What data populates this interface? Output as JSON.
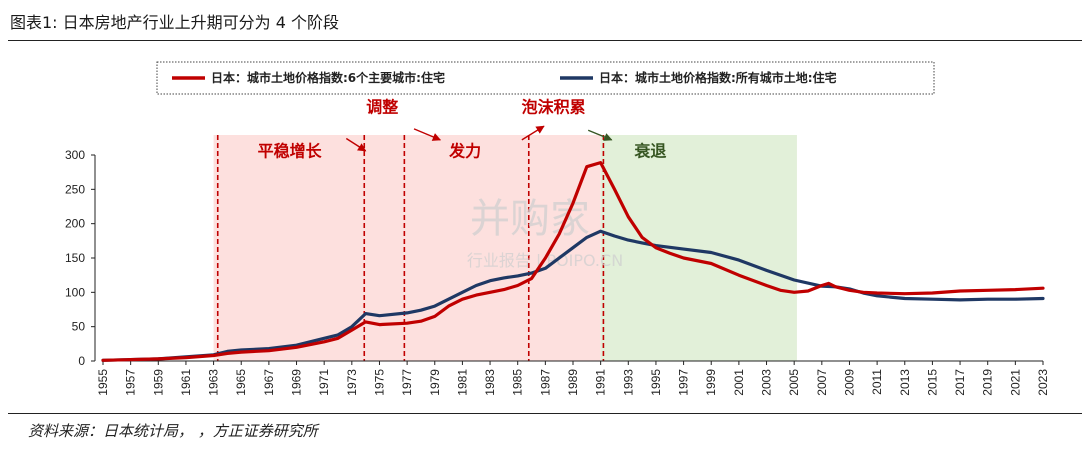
{
  "figure": {
    "title": "图表1: 日本房地产行业上升期可分为 4 个阶段",
    "source": "资料来源：日本统计局，        ，方正证券研究所"
  },
  "watermark": {
    "brand": "并购家",
    "site": "行业报告 | POIPO.CN"
  },
  "colors": {
    "red": "#C00000",
    "blue": "#1F3864",
    "pink_band": "#FDE0DE",
    "green_band": "#E2F0D9",
    "green_text": "#375623",
    "arrow": "#C00000"
  },
  "chart_data": {
    "type": "line",
    "title": "",
    "xlabel": "",
    "ylabel": "",
    "xlim": [
      1955,
      2023
    ],
    "ylim": [
      0,
      300
    ],
    "yticks": [
      0,
      50,
      100,
      150,
      200,
      250,
      300
    ],
    "xticks": [
      "1955",
      "1957",
      "1959",
      "1961",
      "1963",
      "1965",
      "1967",
      "1969",
      "1971",
      "1973",
      "1975",
      "1977",
      "1979",
      "1981",
      "1983",
      "1985",
      "1987",
      "1989",
      "1991",
      "1993",
      "1995",
      "1997",
      "1999",
      "2001",
      "2003",
      "2005",
      "2007",
      "2009",
      "2011",
      "2013",
      "2015",
      "2017",
      "2019",
      "2021",
      "2023"
    ],
    "legend_position": "top",
    "grid": false,
    "series": [
      {
        "name": "日本：城市土地价格指数:6个主要城市:住宅",
        "color": "#C00000",
        "points": [
          [
            1955,
            1
          ],
          [
            1957,
            2
          ],
          [
            1959,
            3
          ],
          [
            1961,
            5
          ],
          [
            1963,
            8
          ],
          [
            1964,
            11
          ],
          [
            1965,
            13
          ],
          [
            1967,
            15
          ],
          [
            1969,
            20
          ],
          [
            1971,
            28
          ],
          [
            1972,
            33
          ],
          [
            1973,
            45
          ],
          [
            1974,
            57
          ],
          [
            1975,
            53
          ],
          [
            1977,
            55
          ],
          [
            1978,
            58
          ],
          [
            1979,
            65
          ],
          [
            1980,
            80
          ],
          [
            1981,
            90
          ],
          [
            1982,
            96
          ],
          [
            1983,
            100
          ],
          [
            1984,
            104
          ],
          [
            1985,
            110
          ],
          [
            1986,
            120
          ],
          [
            1987,
            150
          ],
          [
            1988,
            185
          ],
          [
            1989,
            230
          ],
          [
            1990,
            283
          ],
          [
            1991,
            289
          ],
          [
            1992,
            250
          ],
          [
            1993,
            210
          ],
          [
            1994,
            180
          ],
          [
            1995,
            165
          ],
          [
            1996,
            157
          ],
          [
            1997,
            150
          ],
          [
            1999,
            142
          ],
          [
            2001,
            125
          ],
          [
            2003,
            110
          ],
          [
            2004,
            103
          ],
          [
            2005,
            100
          ],
          [
            2006,
            102
          ],
          [
            2007,
            110
          ],
          [
            2007.5,
            113
          ],
          [
            2008,
            108
          ],
          [
            2009,
            103
          ],
          [
            2010,
            100
          ],
          [
            2011,
            99
          ],
          [
            2013,
            98
          ],
          [
            2015,
            99
          ],
          [
            2017,
            102
          ],
          [
            2019,
            103
          ],
          [
            2021,
            104
          ],
          [
            2023,
            106
          ]
        ]
      },
      {
        "name": "日本：城市土地价格指数:所有城市土地:住宅",
        "color": "#1F3864",
        "points": [
          [
            1955,
            1
          ],
          [
            1957,
            2
          ],
          [
            1959,
            3
          ],
          [
            1961,
            6
          ],
          [
            1963,
            9
          ],
          [
            1964,
            14
          ],
          [
            1965,
            16
          ],
          [
            1967,
            18
          ],
          [
            1969,
            23
          ],
          [
            1971,
            33
          ],
          [
            1972,
            38
          ],
          [
            1973,
            50
          ],
          [
            1974,
            69
          ],
          [
            1975,
            66
          ],
          [
            1977,
            70
          ],
          [
            1978,
            74
          ],
          [
            1979,
            80
          ],
          [
            1980,
            90
          ],
          [
            1981,
            100
          ],
          [
            1982,
            110
          ],
          [
            1983,
            117
          ],
          [
            1984,
            121
          ],
          [
            1985,
            124
          ],
          [
            1986,
            128
          ],
          [
            1987,
            135
          ],
          [
            1988,
            150
          ],
          [
            1989,
            165
          ],
          [
            1990,
            180
          ],
          [
            1991,
            189
          ],
          [
            1992,
            182
          ],
          [
            1993,
            176
          ],
          [
            1994,
            172
          ],
          [
            1995,
            168
          ],
          [
            1997,
            163
          ],
          [
            1999,
            158
          ],
          [
            2001,
            147
          ],
          [
            2003,
            132
          ],
          [
            2005,
            118
          ],
          [
            2007,
            109
          ],
          [
            2008,
            108
          ],
          [
            2009,
            105
          ],
          [
            2010,
            99
          ],
          [
            2011,
            95
          ],
          [
            2013,
            91
          ],
          [
            2015,
            90
          ],
          [
            2017,
            89
          ],
          [
            2019,
            90
          ],
          [
            2021,
            90
          ],
          [
            2023,
            91
          ]
        ]
      }
    ],
    "bands": [
      {
        "from": 1963,
        "to": 1991,
        "color": "#FDE0DE"
      },
      {
        "from": 1991,
        "to": 2005.2,
        "color": "#E2F0D9"
      }
    ],
    "dividers": [
      1963.3,
      1973.9,
      1976.8,
      1985.8,
      1991.2
    ],
    "phase_labels": [
      {
        "text": "平稳增长",
        "x": 1968.5,
        "y": 298,
        "color": "#C00000"
      },
      {
        "text": "调整",
        "x": 1975.2,
        "y": 362,
        "color": "#C00000"
      },
      {
        "text": "发力",
        "x": 1981.2,
        "y": 298,
        "color": "#C00000"
      },
      {
        "text": "泡沫积累",
        "x": 1987.6,
        "y": 362,
        "color": "#C00000"
      },
      {
        "text": "衰退",
        "x": 1994.6,
        "y": 298,
        "color": "#375623"
      }
    ],
    "arrows": [
      {
        "from": [
          1972.6,
          324
        ],
        "to": [
          1974.0,
          306
        ],
        "color": "#C00000"
      },
      {
        "from": [
          1977.5,
          338
        ],
        "to": [
          1979.4,
          322
        ],
        "color": "#C00000"
      },
      {
        "from": [
          1985.3,
          322
        ],
        "to": [
          1986.9,
          342
        ],
        "color": "#C00000"
      },
      {
        "from": [
          1990.1,
          336
        ],
        "to": [
          1991.8,
          322
        ],
        "color": "#375623"
      }
    ]
  }
}
